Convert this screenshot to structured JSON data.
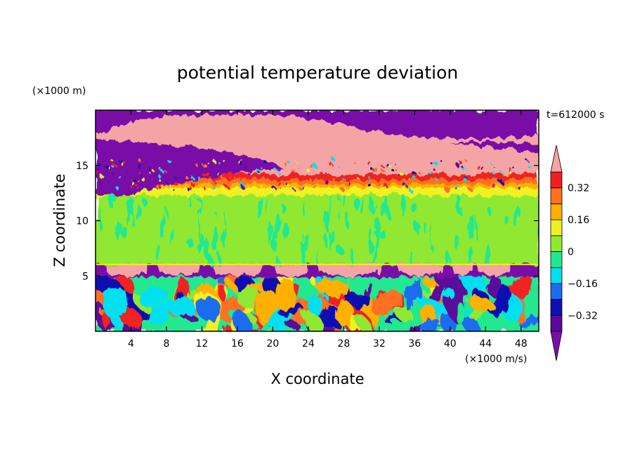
{
  "chart_data": {
    "type": "heatmap",
    "title": "potential temperature deviation",
    "xlabel": "X coordinate",
    "ylabel": "Z coordinate",
    "x_unit": "(×1000 m/s)",
    "y_unit": "(×1000 m)",
    "time_label": "t=612000 s",
    "xlim": [
      0,
      50
    ],
    "ylim": [
      0,
      20
    ],
    "x_ticks": [
      "4",
      "8",
      "12",
      "16",
      "20",
      "24",
      "28",
      "32",
      "36",
      "40",
      "44",
      "48"
    ],
    "x_tick_values": [
      4,
      8,
      12,
      16,
      20,
      24,
      28,
      32,
      36,
      40,
      44,
      48
    ],
    "y_ticks": [
      "5",
      "10",
      "15"
    ],
    "y_tick_values": [
      5,
      10,
      15
    ],
    "colorbar": {
      "levels": [
        -0.4,
        -0.32,
        -0.24,
        -0.16,
        -0.08,
        0,
        0.08,
        0.16,
        0.24,
        0.32,
        0.4
      ],
      "labels": [
        "−0.32",
        "−0.16",
        "0",
        "0.16",
        "0.32"
      ],
      "label_values": [
        -0.32,
        -0.16,
        0,
        0.16,
        0.32
      ],
      "under_color": "#7a0fa8",
      "over_color": "#f4a4a4",
      "colors": [
        "#5a0a9a",
        "#1010b0",
        "#1c6cf0",
        "#00e0f0",
        "#20e890",
        "#90e830",
        "#f0f020",
        "#ffb000",
        "#ff7020",
        "#f02020"
      ]
    },
    "regions": [
      {
        "name": "upper negative layer",
        "z_range": [
          15,
          20
        ],
        "value": -0.4
      },
      {
        "name": "upper positive layer",
        "z_range": [
          13.5,
          19
        ],
        "value": 0.4
      },
      {
        "name": "mid layer",
        "z_range": [
          6,
          12.5
        ],
        "value": 0.04
      },
      {
        "name": "inversion positive band",
        "z_range": [
          5,
          6
        ],
        "value": 0.4
      },
      {
        "name": "inversion negative band",
        "z_range": [
          4.9,
          6.2
        ],
        "value": -0.4
      },
      {
        "name": "lower turbulent layer",
        "z_range": [
          0,
          5
        ],
        "value": 0
      }
    ]
  }
}
